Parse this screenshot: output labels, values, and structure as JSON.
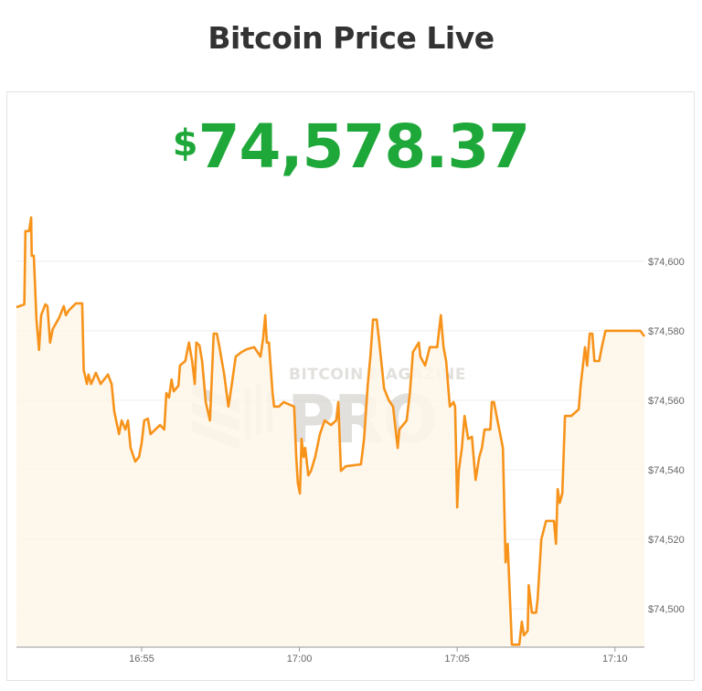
{
  "header": {
    "title": "Bitcoin Price Live"
  },
  "price": {
    "currency_symbol": "$",
    "value": "74,578.37",
    "color": "#1fa83a"
  },
  "watermark": {
    "line1": "BITCOIN MAGAZINE",
    "line2": "PRO"
  },
  "chart_data": {
    "type": "area",
    "title": "",
    "xlabel": "",
    "ylabel": "",
    "line_color": "#f7931a",
    "fill_color": "#fef6e9",
    "grid": true,
    "y_axis_position": "right",
    "xlim": [
      "16:51:02",
      "17:10:56"
    ],
    "ylim": [
      74489,
      74616
    ],
    "x_ticks": [
      "16:55",
      "17:00",
      "17:05",
      "17:10"
    ],
    "y_ticks": [
      {
        "value": 74600,
        "label": "$74,600"
      },
      {
        "value": 74580,
        "label": "$74,580"
      },
      {
        "value": 74560,
        "label": "$74,560"
      },
      {
        "value": 74540,
        "label": "$74,540"
      },
      {
        "value": 74520,
        "label": "$74,520"
      },
      {
        "value": 74500,
        "label": "$74,500"
      }
    ],
    "series": [
      {
        "x": [
          "16:51:02",
          "16:51:17",
          "16:51:19",
          "16:51:26",
          "16:51:30",
          "16:51:31",
          "16:51:35",
          "16:51:40",
          "16:51:45",
          "16:51:49",
          "16:51:57",
          "16:52:01",
          "16:52:06",
          "16:52:11",
          "16:52:23",
          "16:52:32",
          "16:52:36",
          "16:52:41",
          "16:52:55",
          "16:53:07",
          "16:53:10",
          "16:53:16",
          "16:53:19",
          "16:53:24",
          "16:53:33",
          "16:53:42",
          "16:53:56",
          "16:54:03",
          "16:54:08",
          "16:54:17",
          "16:54:22",
          "16:54:29",
          "16:54:34",
          "16:54:39",
          "16:54:48",
          "16:54:55",
          "16:55:00",
          "16:55:05",
          "16:55:12",
          "16:55:17",
          "16:55:26",
          "16:55:35",
          "16:55:43",
          "16:55:47",
          "16:55:52",
          "16:55:57",
          "16:56:01",
          "16:56:10",
          "16:56:13",
          "16:56:23",
          "16:56:30",
          "16:56:36",
          "16:56:41",
          "16:56:44",
          "16:56:50",
          "16:56:55",
          "16:57:02",
          "16:57:10",
          "16:57:17",
          "16:57:23",
          "16:57:28",
          "16:57:37",
          "16:57:45",
          "16:57:49",
          "16:57:54",
          "16:57:59",
          "16:58:10",
          "16:58:20",
          "16:58:34",
          "16:58:46",
          "16:58:51",
          "16:58:55",
          "16:58:58",
          "16:59:02",
          "16:59:09",
          "16:59:12",
          "16:59:21",
          "16:59:30",
          "16:59:50",
          "16:59:54",
          "16:59:57",
          "17:00:01",
          "17:00:04",
          "17:00:08",
          "17:00:11",
          "17:00:17",
          "17:00:22",
          "17:00:30",
          "17:00:39",
          "17:00:48",
          "17:01:00",
          "17:01:10",
          "17:01:14",
          "17:01:19",
          "17:01:28",
          "17:01:57",
          "17:02:03",
          "17:02:10",
          "17:02:15",
          "17:02:20",
          "17:02:27",
          "17:02:32",
          "17:02:41",
          "17:02:50",
          "17:02:58",
          "17:03:07",
          "17:03:10",
          "17:03:24",
          "17:03:30",
          "17:03:36",
          "17:03:47",
          "17:03:50",
          "17:03:59",
          "17:04:08",
          "17:04:22",
          "17:04:29",
          "17:04:34",
          "17:04:39",
          "17:04:46",
          "17:04:53",
          "17:04:56",
          "17:05:00",
          "17:05:03",
          "17:05:09",
          "17:05:14",
          "17:05:21",
          "17:05:28",
          "17:05:35",
          "17:05:42",
          "17:05:47",
          "17:05:52",
          "17:06:03",
          "17:06:06",
          "17:06:10",
          "17:06:15",
          "17:06:20",
          "17:06:27",
          "17:06:32",
          "17:06:36",
          "17:06:44",
          "17:06:58",
          "17:07:03",
          "17:07:07",
          "17:07:14",
          "17:07:16",
          "17:07:22",
          "17:07:30",
          "17:07:33",
          "17:07:40",
          "17:07:49",
          "17:08:04",
          "17:08:08",
          "17:08:11",
          "17:08:15",
          "17:08:20",
          "17:08:25",
          "17:08:37",
          "17:08:51",
          "17:08:55",
          "17:09:00",
          "17:09:03",
          "17:09:07",
          "17:09:12",
          "17:09:17",
          "17:09:21",
          "17:09:30",
          "17:09:35",
          "17:09:42",
          "17:10:48",
          "17:10:56"
        ],
        "y": [
          74586.8,
          74587.6,
          74608.7,
          74608.7,
          74612.6,
          74601.6,
          74601.6,
          74583.2,
          74574.5,
          74584.5,
          74587.6,
          74587.1,
          74576.6,
          74580.5,
          74583.7,
          74587.1,
          74584.5,
          74585.8,
          74587.9,
          74587.9,
          74568.7,
          74564.7,
          74567.4,
          74564.7,
          74567.9,
          74564.7,
          74567.4,
          74564.7,
          74556.8,
          74550.3,
          74554.2,
          74551.6,
          74554.2,
          74546.3,
          74542.4,
          74543.7,
          74547.6,
          74554.2,
          74554.7,
          74550.3,
          74551.6,
          74552.9,
          74551.6,
          74562.1,
          74560.8,
          74566.0,
          74562.6,
          74564.2,
          74570.0,
          74571.3,
          74576.6,
          74571.3,
          74564.7,
          74576.6,
          74575.8,
          74571.3,
          74559.5,
          74554.2,
          74579.2,
          74579.2,
          74575.3,
          74567.4,
          74558.2,
          74562.1,
          74567.4,
          74572.6,
          74573.9,
          74574.7,
          74575.3,
          74572.6,
          74577.9,
          74584.5,
          74576.6,
          74576.6,
          74562.1,
          74558.2,
          74558.2,
          74559.5,
          74558.2,
          74543.7,
          74536.3,
          74533.2,
          74548.9,
          74543.7,
          74546.3,
          74538.4,
          74539.7,
          74543.7,
          74550.3,
          74554.2,
          74552.9,
          74554.2,
          74559.5,
          74539.7,
          74541.0,
          74541.6,
          74548.9,
          74564.7,
          74572.6,
          74583.2,
          74583.2,
          74576.6,
          74563.4,
          74560.0,
          74558.2,
          74546.3,
          74551.6,
          74554.2,
          74562.1,
          74573.9,
          74576.6,
          74572.6,
          74570.0,
          74575.3,
          74575.3,
          74584.5,
          74575.3,
          74571.3,
          74558.2,
          74559.5,
          74558.2,
          74529.2,
          74539.7,
          74546.3,
          74555.5,
          74548.9,
          74549.5,
          74537.1,
          74543.7,
          74546.3,
          74551.6,
          74551.6,
          74559.5,
          74559.5,
          74555.5,
          74551.6,
          74546.3,
          74513.4,
          74518.7,
          74489.7,
          74489.7,
          74496.3,
          74492.4,
          74493.7,
          74506.8,
          74498.9,
          74498.9,
          74502.9,
          74520.0,
          74525.3,
          74525.3,
          74518.7,
          74534.5,
          74530.5,
          74533.2,
          74555.5,
          74555.5,
          74557.4,
          74564.7,
          74571.3,
          74575.3,
          74570.0,
          74579.2,
          74579.2,
          74571.3,
          74571.3,
          74575.3,
          74580.0,
          74580.0,
          74578.4
        ]
      }
    ]
  }
}
